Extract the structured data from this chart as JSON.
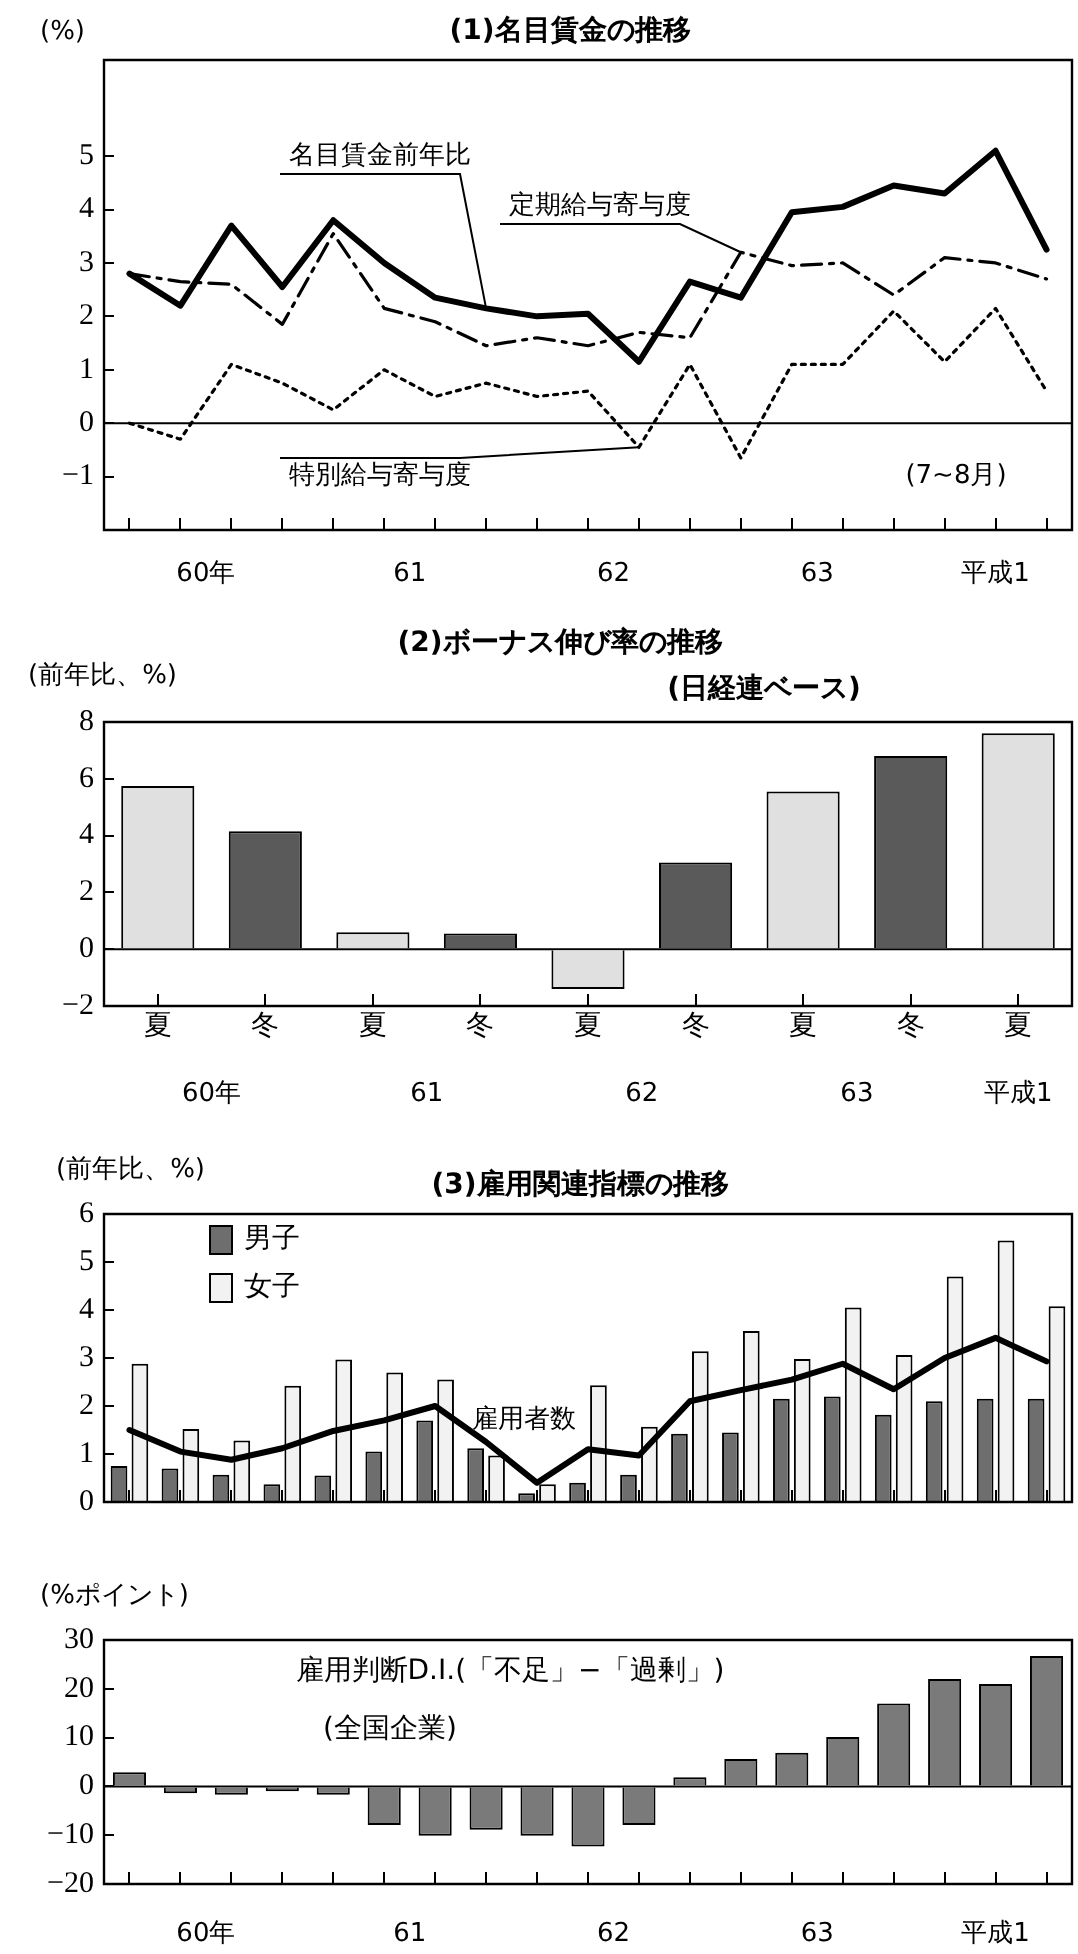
{
  "chart_data": [
    {
      "type": "line",
      "title": "(1)名目賃金の推移",
      "ylabel": "(%)",
      "categories": [
        null,
        null,
        null,
        null,
        null,
        null,
        null,
        null,
        null,
        null,
        null,
        null,
        null,
        null,
        null,
        null,
        null,
        null,
        null
      ],
      "series": [
        {
          "name": "名目賃金前年比",
          "color": "#000000",
          "line_style": "solid",
          "values": [
            2.8,
            2.2,
            3.7,
            2.55,
            3.8,
            3.0,
            2.35,
            2.15,
            2.0,
            2.05,
            1.15,
            2.65,
            2.35,
            3.95,
            4.05,
            4.45,
            4.3,
            5.1,
            3.25
          ]
        },
        {
          "name": "定期給与寄与度",
          "color": "#000000",
          "line_style": "dashed",
          "values": [
            2.8,
            2.65,
            2.6,
            1.85,
            3.55,
            2.15,
            1.9,
            1.45,
            1.6,
            1.45,
            1.7,
            1.6,
            3.2,
            2.95,
            3.0,
            2.4,
            3.1,
            3.0,
            2.7
          ]
        },
        {
          "name": "特別給与寄与度",
          "color": "#000000",
          "line_style": "dotted",
          "values": [
            0,
            -0.3,
            1.1,
            0.75,
            0.25,
            1.0,
            0.5,
            0.75,
            0.5,
            0.6,
            -0.45,
            1.1,
            -0.65,
            1.1,
            1.1,
            2.1,
            1.15,
            2.15,
            0.6
          ]
        }
      ],
      "ylim": [
        -2,
        6.8
      ],
      "yticks": [
        {
          "value": -1,
          "label": "−1"
        },
        0,
        1,
        2,
        3,
        4,
        5
      ],
      "ref_lines": [
        {
          "axis": "y",
          "value": 0
        }
      ],
      "annotations": [
        "60年",
        "61",
        "62",
        "63",
        "平成1",
        "(7~8月)"
      ],
      "marker": "none",
      "grid": false,
      "legend": false
    },
    {
      "type": "bar",
      "title": "(2)ボーナス伸び率の推移",
      "subtitle": "(日経連ベース)",
      "ylabel": "(前年比、%)",
      "categories": [
        "夏",
        "冬",
        "夏",
        "冬",
        "夏",
        "冬",
        "夏",
        "冬",
        "夏"
      ],
      "values": [
        5.75,
        4.15,
        0.6,
        0.55,
        -1.4,
        3.05,
        5.55,
        6.8,
        7.6
      ],
      "colors": [
        "#e0e0e0",
        "#5a5a5a",
        "#e0e0e0",
        "#5a5a5a",
        "#e0e0e0",
        "#5a5a5a",
        "#e0e0e0",
        "#5a5a5a",
        "#e0e0e0"
      ],
      "ylim": [
        -2,
        8
      ],
      "yticks": [
        {
          "value": -2,
          "label": "−2"
        },
        0,
        2,
        4,
        6,
        8
      ],
      "ref_lines": [
        {
          "axis": "y",
          "value": 0
        }
      ],
      "annotations": [
        "60年",
        "61",
        "62",
        "63",
        "平成1"
      ],
      "grid": false,
      "legend": false
    },
    {
      "type": "bar",
      "title": "(3)雇用関連指標の推移",
      "ylabel": "(前年比、%)",
      "categories": [
        null,
        null,
        null,
        null,
        null,
        null,
        null,
        null,
        null,
        null,
        null,
        null,
        null,
        null,
        null,
        null,
        null,
        null,
        null
      ],
      "series": [
        {
          "name": "男子",
          "color": "#6e6e6e",
          "values": [
            0.75,
            0.7,
            0.57,
            0.37,
            0.55,
            1.05,
            1.7,
            1.12,
            0.18,
            0.4,
            0.57,
            1.42,
            1.45,
            2.15,
            2.2,
            1.82,
            2.1,
            2.15,
            2.15
          ]
        },
        {
          "name": "女子",
          "color": "#f2f2f2",
          "values": [
            2.88,
            1.52,
            1.28,
            2.42,
            2.97,
            2.7,
            2.55,
            0.97,
            0.37,
            2.43,
            1.57,
            3.14,
            3.56,
            2.98,
            4.05,
            3.06,
            4.7,
            5.45,
            4.08
          ]
        },
        {
          "name": "雇用者数",
          "type": "line",
          "color": "#000000",
          "values": [
            1.5,
            1.05,
            0.88,
            1.12,
            1.48,
            1.7,
            2.0,
            1.25,
            0.4,
            1.1,
            0.97,
            2.1,
            2.33,
            2.55,
            2.88,
            2.35,
            3.0,
            3.42,
            2.93
          ]
        }
      ],
      "ylim": [
        0,
        6
      ],
      "yticks": [
        0,
        1,
        2,
        3,
        4,
        5,
        6
      ],
      "tick_labels": "y",
      "marker": "none",
      "grid": false,
      "legend": "top left"
    },
    {
      "type": "bar",
      "title": "雇用判断D.I.(「不足」−「過剰」)",
      "subtitle": "(全国企業)",
      "ylabel": "(%ポイント)",
      "categories": [
        null,
        null,
        null,
        null,
        null,
        null,
        null,
        null,
        null,
        null,
        null,
        null,
        null,
        null,
        null,
        null,
        null,
        null,
        null
      ],
      "values": [
        2.9,
        -1.4,
        -1.7,
        -1.0,
        -1.7,
        -7.9,
        -10.1,
        -8.9,
        -10.1,
        -12.3,
        -7.9,
        1.9,
        5.6,
        6.9,
        10.1,
        17,
        22,
        21,
        26.7
      ],
      "color": "#7a7a7a",
      "ylim": [
        -20,
        30
      ],
      "yticks": [
        {
          "value": -20,
          "label": "−20"
        },
        {
          "value": -10,
          "label": "−10"
        },
        0,
        10,
        20,
        30
      ],
      "ref_lines": [
        {
          "axis": "y",
          "value": 0
        }
      ],
      "annotations": [
        "60年",
        "61",
        "62",
        "63",
        "平成1"
      ],
      "grid": false,
      "legend": false
    }
  ]
}
